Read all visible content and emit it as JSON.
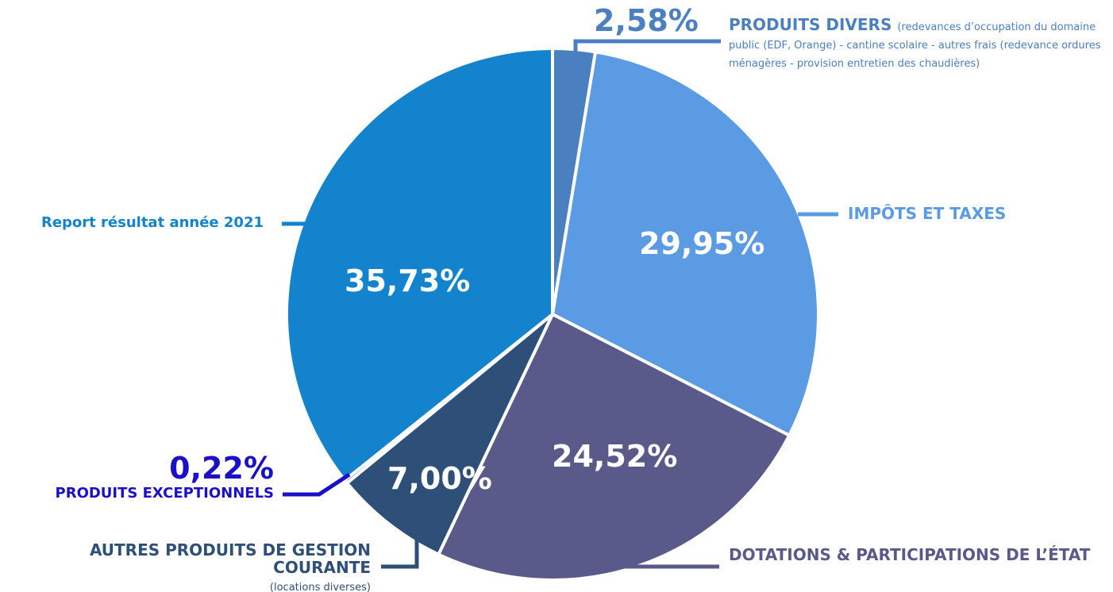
{
  "chart_data": {
    "type": "pie",
    "categories": [
      "PRODUITS DIVERS",
      "IMPÔTS ET TAXES",
      "DOTATIONS & PARTICIPATIONS DE L’ÉTAT",
      "AUTRES PRODUITS DE GESTION COURANTE",
      "PRODUITS EXCEPTIONNELS",
      "Report résultat année 2021"
    ],
    "descriptions": [
      "(redevances d’occupation du domaine public (EDF, Orange) - cantine scolaire - autres frais (redevance ordures ménagères - provision entretien des chaudières)",
      null,
      null,
      "(locations diverses)",
      null,
      null
    ],
    "values": [
      2.58,
      29.95,
      24.52,
      7.0,
      0.22,
      35.73
    ],
    "value_labels": [
      "2,58%",
      "29,95%",
      "24,52%",
      "7,00%",
      "0,22%",
      "35,73%"
    ],
    "colors": [
      "#4a7fc0",
      "#5b9be3",
      "#5a5a8a",
      "#2d4f78",
      "#1a10c8",
      "#1283cc"
    ]
  }
}
